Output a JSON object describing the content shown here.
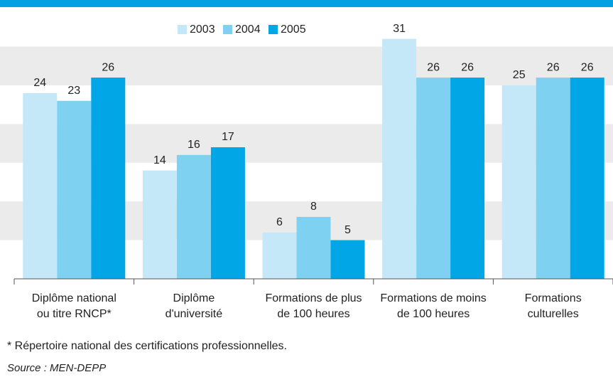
{
  "chart_data": {
    "type": "bar",
    "categories": [
      [
        "Diplôme national",
        "ou titre RNCP*"
      ],
      [
        "Diplôme",
        "d'université"
      ],
      [
        "Formations de plus",
        "de 100 heures"
      ],
      [
        "Formations de moins",
        "de 100 heures"
      ],
      [
        "Formations",
        "culturelles"
      ]
    ],
    "series": [
      {
        "name": "2003",
        "color": "#c5e8f8",
        "values": [
          24,
          14,
          6,
          31,
          25
        ]
      },
      {
        "name": "2004",
        "color": "#7fd1f2",
        "values": [
          23,
          16,
          8,
          26,
          26
        ]
      },
      {
        "name": "2005",
        "color": "#00a6e6",
        "values": [
          26,
          17,
          5,
          26,
          26
        ]
      }
    ],
    "ylim": [
      0,
      34
    ],
    "yticks": [
      0,
      5,
      10,
      15,
      20,
      25,
      30
    ],
    "grid": true,
    "footnote": "* Répertoire national des certifications professionnelles.",
    "source": "Source : MEN-DEPP"
  }
}
